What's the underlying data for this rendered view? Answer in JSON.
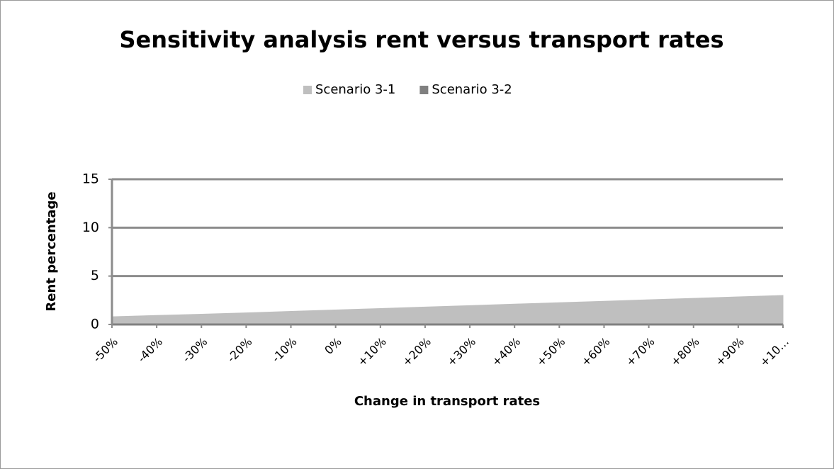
{
  "chart_data": {
    "type": "area",
    "title": "Sensitivity analysis rent versus transport rates",
    "x_label": "Change in transport rates",
    "y_label": "Rent percentage",
    "categories": [
      "-50%",
      "-40%",
      "-30%",
      "-20%",
      "-10%",
      "0%",
      "+10%",
      "+20%",
      "+30%",
      "+40%",
      "+50%",
      "+60%",
      "+70%",
      "+80%",
      "+90%",
      "+10…"
    ],
    "series": [
      {
        "name": "Scenario 3-1",
        "color": "#bfbfbf",
        "values": [
          0.8,
          0.93,
          1.06,
          1.2,
          1.35,
          1.5,
          1.65,
          1.8,
          1.95,
          2.1,
          2.25,
          2.4,
          2.55,
          2.7,
          2.85,
          3.0
        ]
      },
      {
        "name": "Scenario 3-2",
        "color": "#808080",
        "values": [
          0,
          0,
          0,
          0,
          0,
          0,
          0,
          0,
          0,
          0,
          0,
          0,
          0,
          0,
          0,
          0
        ]
      }
    ],
    "ylim": [
      0,
      15
    ],
    "yticks": [
      0,
      5,
      10,
      15
    ],
    "grid": true,
    "legend": "top"
  }
}
